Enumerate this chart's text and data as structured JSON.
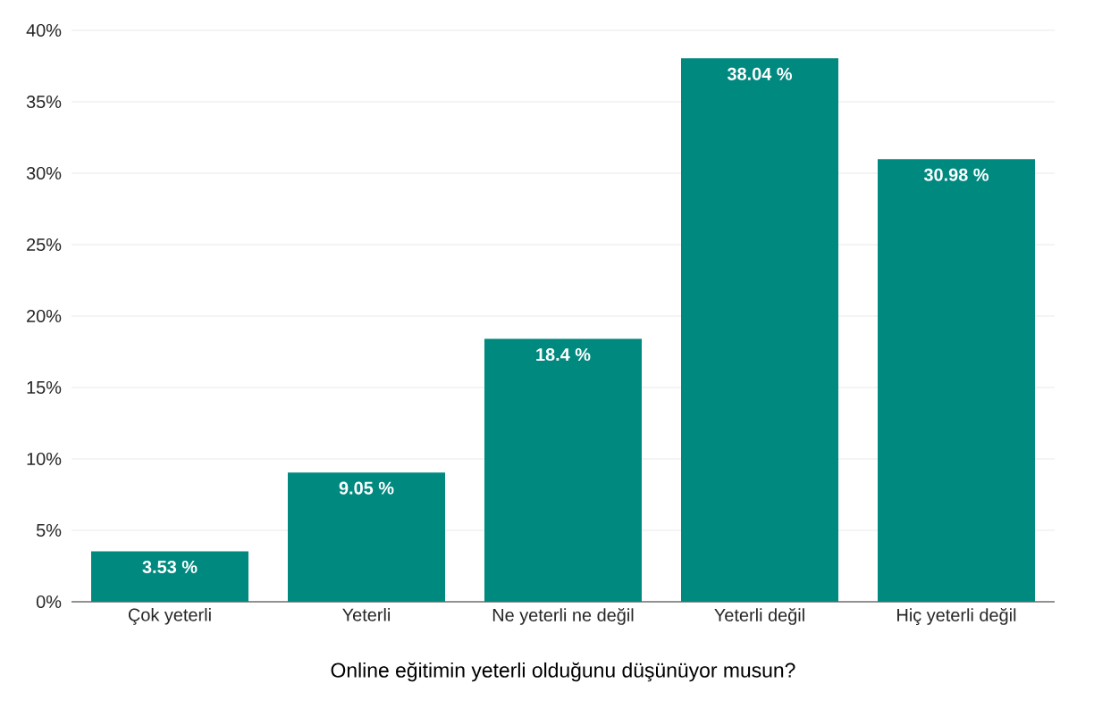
{
  "chart_data": {
    "type": "bar",
    "xlabel": "Online eğitimin yeterli olduğunu düşünüyor musun?",
    "categories": [
      "Çok yeterli",
      "Yeterli",
      "Ne yeterli ne değil",
      "Yeterli değil",
      "Hiç yeterli değil"
    ],
    "values": [
      3.53,
      9.05,
      18.4,
      38.04,
      30.98
    ],
    "value_labels": [
      "3.53 %",
      "9.05 %",
      "18.4 %",
      "38.04 %",
      "30.98 %"
    ],
    "color": "#00897f",
    "ylim": [
      0,
      40
    ],
    "yticks": [
      {
        "value": 0,
        "label": "0%"
      },
      {
        "value": 5,
        "label": "5%"
      },
      {
        "value": 10,
        "label": "10%"
      },
      {
        "value": 15,
        "label": "15%"
      },
      {
        "value": 20,
        "label": "20%"
      },
      {
        "value": 25,
        "label": "25%"
      },
      {
        "value": 30,
        "label": "30%"
      },
      {
        "value": 35,
        "label": "35%"
      },
      {
        "value": 40,
        "label": "40%"
      }
    ],
    "grid": true
  }
}
